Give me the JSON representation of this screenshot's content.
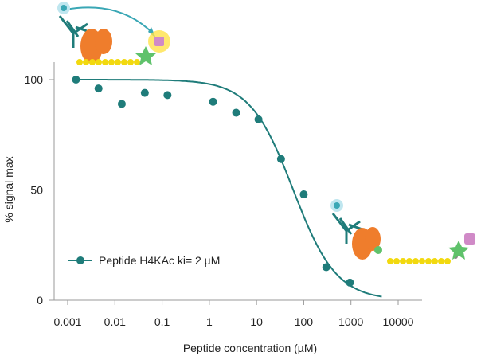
{
  "chart_data": {
    "type": "scatter",
    "title": "",
    "xlabel": "Peptide concentration (µM)",
    "ylabel": "% signal max",
    "x_scale": "log",
    "xlim": [
      0.001,
      25000
    ],
    "ylim": [
      0,
      100
    ],
    "x_ticks": [
      0.001,
      0.01,
      0.1,
      1,
      10,
      100,
      1000,
      10000
    ],
    "x_tick_labels": [
      "0.001",
      "0.01",
      "0.1",
      "1",
      "10",
      "100",
      "1000",
      "10000"
    ],
    "y_ticks": [
      0,
      50,
      100
    ],
    "y_tick_labels": [
      "0",
      "50",
      "100"
    ],
    "grid": false,
    "legend_position": "bottom-left",
    "series": [
      {
        "name": "Peptide H4KAc ki= 2 µM",
        "color": "#1f7c7a",
        "points": [
          {
            "x": 0.0015,
            "y": 100
          },
          {
            "x": 0.0045,
            "y": 96
          },
          {
            "x": 0.014,
            "y": 89
          },
          {
            "x": 0.043,
            "y": 94
          },
          {
            "x": 0.13,
            "y": 93
          },
          {
            "x": 1.2,
            "y": 90
          },
          {
            "x": 3.7,
            "y": 85
          },
          {
            "x": 11,
            "y": 82
          },
          {
            "x": 33,
            "y": 64
          },
          {
            "x": 100,
            "y": 48
          },
          {
            "x": 300,
            "y": 15
          },
          {
            "x": 950,
            "y": 8
          }
        ],
        "fit": {
          "top": 100,
          "bottom": 0,
          "ic50": 60,
          "hill": 0.95,
          "x_range": [
            0.0015,
            4500
          ]
        }
      }
    ]
  }
}
